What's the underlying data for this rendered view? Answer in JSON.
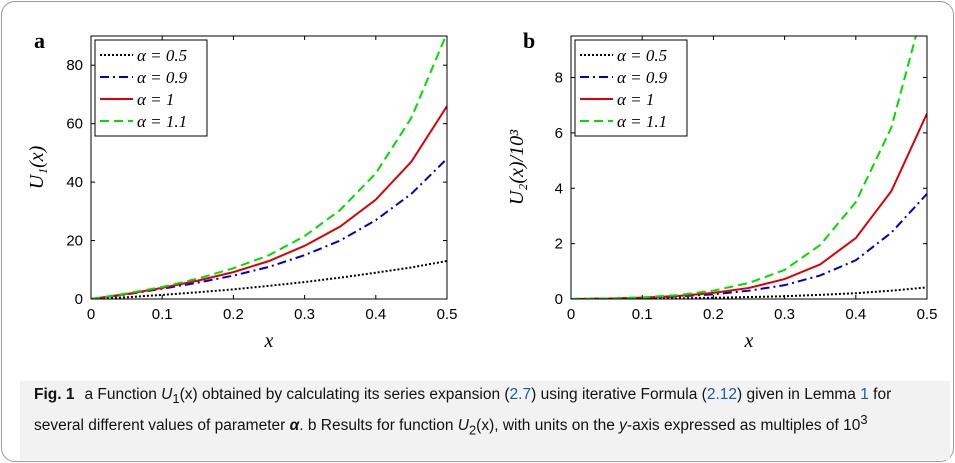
{
  "chart_data": [
    {
      "panel": "a",
      "type": "line",
      "xlabel": "x",
      "ylabel": "U₁(x)",
      "xlim": [
        0,
        0.5
      ],
      "ylim": [
        0,
        90
      ],
      "xticks": [
        "0",
        "0.1",
        "0.2",
        "0.3",
        "0.4",
        "0.5"
      ],
      "yticks": [
        "0",
        "20",
        "40",
        "60",
        "80"
      ],
      "grid": false,
      "legend_position": "top-left",
      "x": [
        0,
        0.05,
        0.1,
        0.15,
        0.2,
        0.25,
        0.3,
        0.35,
        0.4,
        0.45,
        0.5
      ],
      "series": [
        {
          "name": "α = 0.5",
          "style": "dotted",
          "color": "#000000",
          "values": [
            0,
            0.6,
            1.4,
            2.3,
            3.3,
            4.5,
            5.8,
            7.3,
            9.0,
            10.8,
            13.0
          ]
        },
        {
          "name": "α = 0.9",
          "style": "dash-dot",
          "color": "#0000cc",
          "values": [
            0,
            1.6,
            3.5,
            5.6,
            8.0,
            11.0,
            15.0,
            20.0,
            27.0,
            36.0,
            48.0
          ]
        },
        {
          "name": "α = 1",
          "style": "solid",
          "color": "#dd0000",
          "values": [
            0,
            1.7,
            3.8,
            6.3,
            9.2,
            13.0,
            18.2,
            24.8,
            34.0,
            47.0,
            66.0
          ]
        },
        {
          "name": "α = 1.1",
          "style": "dashed",
          "color": "#00dd00",
          "values": [
            0,
            1.9,
            4.1,
            7.0,
            10.5,
            15.0,
            21.5,
            30.5,
            43.0,
            62.0,
            91.0
          ]
        }
      ]
    },
    {
      "panel": "b",
      "type": "line",
      "xlabel": "x",
      "ylabel": "U₂(x)/10³",
      "xlim": [
        0,
        0.5
      ],
      "ylim": [
        0,
        9.5
      ],
      "xticks": [
        "0",
        "0.1",
        "0.2",
        "0.3",
        "0.4",
        "0.5"
      ],
      "yticks": [
        "0",
        "2",
        "4",
        "6",
        "8"
      ],
      "grid": false,
      "legend_position": "top-left",
      "x": [
        0,
        0.05,
        0.1,
        0.15,
        0.2,
        0.25,
        0.3,
        0.35,
        0.4,
        0.45,
        0.5
      ],
      "series": [
        {
          "name": "α = 0.5",
          "style": "dotted",
          "color": "#000000",
          "values": [
            0,
            0.004,
            0.012,
            0.025,
            0.045,
            0.07,
            0.1,
            0.15,
            0.21,
            0.3,
            0.42
          ]
        },
        {
          "name": "α = 0.9",
          "style": "dash-dot",
          "color": "#0000cc",
          "values": [
            0,
            0.01,
            0.04,
            0.09,
            0.17,
            0.3,
            0.5,
            0.85,
            1.4,
            2.4,
            3.8
          ]
        },
        {
          "name": "α = 1",
          "style": "solid",
          "color": "#dd0000",
          "values": [
            0,
            0.012,
            0.05,
            0.11,
            0.22,
            0.4,
            0.72,
            1.25,
            2.2,
            3.9,
            6.7
          ]
        },
        {
          "name": "α = 1.1",
          "style": "dashed",
          "color": "#00dd00",
          "values": [
            0,
            0.015,
            0.06,
            0.14,
            0.3,
            0.58,
            1.05,
            1.95,
            3.5,
            6.2,
            11.0
          ]
        }
      ]
    }
  ],
  "panels": {
    "a": {
      "letter": "a"
    },
    "b": {
      "letter": "b"
    }
  },
  "caption": {
    "fig_label": "Fig. 1",
    "t1": "a Function ",
    "u1": "U",
    "u1_sub": "1",
    "t2": "(x) obtained by calculating its series expansion (",
    "ref1": "2.7",
    "t3": ") using iterative Formula (",
    "ref2": "2.12",
    "t4": ") given in Lemma ",
    "ref3": "1",
    "t5": " for several different values of parameter ",
    "alpha": "α",
    "t6": ". b Results for function ",
    "u2": "U",
    "u2_sub": "2",
    "t7": "(x), with units on the ",
    "yaxis": "y",
    "t8": "-axis expressed as multiples of 10",
    "exp": "3"
  }
}
